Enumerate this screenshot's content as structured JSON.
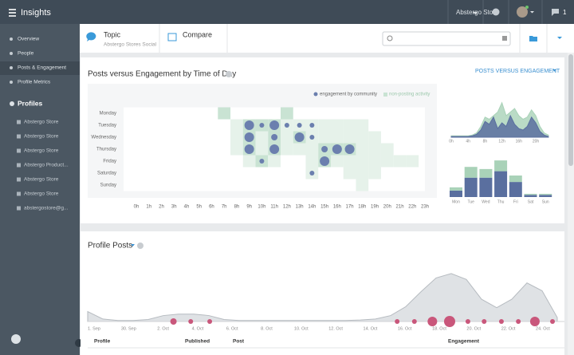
{
  "topbar": {
    "title": "Insights",
    "store": "Abstergo Store",
    "notifications": "1"
  },
  "sidebar": {
    "nav": [
      "Overview",
      "People",
      "Posts & Engagement",
      "Profile Metrics"
    ],
    "profiles_title": "Profiles",
    "profiles": [
      "Abstergo Store",
      "Abstergo Store",
      "Abstergo Store",
      "Abstergo Product...",
      "Abstergo Store",
      "Abstergo Store",
      "abstergostore@g..."
    ]
  },
  "toolbar": {
    "topic": "Topic",
    "topic_sub": "Abstergo Stores Social",
    "compare": "Compare"
  },
  "engagement_card": {
    "title": "Posts versus Engagement by Time of Day",
    "view": "POSTS VERSUS ENGAGEMENT",
    "legend": [
      "engagement by community",
      "non-posting activity"
    ],
    "days": [
      "Monday",
      "Tuesday",
      "Wednesday",
      "Thursday",
      "Friday",
      "Saturday",
      "Sunday"
    ],
    "hours": [
      "0h",
      "1h",
      "2h",
      "3h",
      "4h",
      "5h",
      "6h",
      "7h",
      "8h",
      "9h",
      "10h",
      "11h",
      "12h",
      "13h",
      "14h",
      "15h",
      "16h",
      "17h",
      "18h",
      "19h",
      "20h",
      "21h",
      "22h",
      "23h"
    ],
    "activity": [
      [
        0,
        7,
        2
      ],
      [
        0,
        12,
        2
      ],
      [
        1,
        8,
        1
      ],
      [
        1,
        9,
        2
      ],
      [
        1,
        10,
        2
      ],
      [
        1,
        11,
        2
      ],
      [
        1,
        12,
        1
      ],
      [
        1,
        13,
        1
      ],
      [
        1,
        14,
        1
      ],
      [
        1,
        15,
        1
      ],
      [
        1,
        16,
        1
      ],
      [
        1,
        17,
        1
      ],
      [
        1,
        18,
        1
      ],
      [
        2,
        8,
        1
      ],
      [
        2,
        9,
        2
      ],
      [
        2,
        10,
        1
      ],
      [
        2,
        11,
        2
      ],
      [
        2,
        12,
        1
      ],
      [
        2,
        13,
        2
      ],
      [
        2,
        14,
        1
      ],
      [
        2,
        15,
        1
      ],
      [
        2,
        16,
        1
      ],
      [
        2,
        17,
        1
      ],
      [
        2,
        18,
        1
      ],
      [
        2,
        19,
        1
      ],
      [
        3,
        8,
        1
      ],
      [
        3,
        9,
        2
      ],
      [
        3,
        10,
        1
      ],
      [
        3,
        11,
        2
      ],
      [
        3,
        12,
        1
      ],
      [
        3,
        13,
        1
      ],
      [
        3,
        14,
        1
      ],
      [
        3,
        15,
        2
      ],
      [
        3,
        16,
        2
      ],
      [
        3,
        17,
        2
      ],
      [
        3,
        18,
        1
      ],
      [
        3,
        19,
        1
      ],
      [
        3,
        20,
        1
      ],
      [
        4,
        9,
        1
      ],
      [
        4,
        10,
        2
      ],
      [
        4,
        11,
        1
      ],
      [
        4,
        14,
        1
      ],
      [
        4,
        15,
        2
      ],
      [
        4,
        16,
        1
      ],
      [
        4,
        17,
        1
      ],
      [
        4,
        18,
        1
      ],
      [
        4,
        19,
        1
      ],
      [
        4,
        20,
        1
      ],
      [
        4,
        21,
        1
      ],
      [
        4,
        22,
        1
      ],
      [
        5,
        14,
        1
      ],
      [
        5,
        17,
        1
      ],
      [
        5,
        18,
        1
      ],
      [
        5,
        19,
        1
      ],
      [
        6,
        18,
        1
      ]
    ],
    "bubbles": [
      [
        1,
        9,
        6
      ],
      [
        1,
        10,
        3
      ],
      [
        1,
        11,
        6
      ],
      [
        1,
        12,
        3
      ],
      [
        1,
        13,
        3
      ],
      [
        1,
        14,
        3
      ],
      [
        2,
        9,
        6
      ],
      [
        2,
        11,
        4
      ],
      [
        2,
        13,
        6
      ],
      [
        2,
        14,
        3
      ],
      [
        3,
        9,
        6
      ],
      [
        3,
        11,
        6
      ],
      [
        3,
        15,
        4
      ],
      [
        3,
        16,
        6
      ],
      [
        3,
        17,
        6
      ],
      [
        4,
        10,
        3
      ],
      [
        4,
        15,
        6
      ],
      [
        5,
        14,
        3
      ]
    ],
    "hourly": {
      "labels": [
        "0h",
        "4h",
        "8h",
        "12h",
        "16h",
        "20h"
      ],
      "activity": [
        2,
        2,
        2,
        2,
        2,
        3,
        6,
        15,
        28,
        25,
        30,
        35,
        48,
        30,
        35,
        40,
        30,
        25,
        28,
        38,
        30,
        15,
        6,
        3
      ],
      "engagement": [
        1,
        1,
        1,
        1,
        1,
        2,
        4,
        10,
        22,
        18,
        28,
        12,
        20,
        15,
        30,
        18,
        12,
        10,
        15,
        28,
        20,
        8,
        3,
        1
      ]
    },
    "weekly": {
      "days": [
        "Mon",
        "Tue",
        "Wed",
        "Thu",
        "Fri",
        "Sat",
        "Sun"
      ],
      "engagement": [
        3,
        9,
        9,
        12,
        7,
        1,
        1
      ],
      "activity": [
        1.5,
        5,
        4,
        5,
        3,
        0.5,
        0.5
      ]
    }
  },
  "posts_card": {
    "title": "Profile Posts",
    "dates": [
      "1. Sep",
      "30. Sep",
      "2. Oct",
      "4. Oct",
      "6. Oct",
      "8. Oct",
      "10. Oct",
      "12. Oct",
      "14. Oct",
      "16. Oct",
      "18. Oct",
      "20. Oct",
      "22. Oct",
      "24. Oct"
    ],
    "volume": [
      20,
      5,
      2,
      2,
      4,
      12,
      15,
      15,
      12,
      4,
      2,
      2,
      2,
      2,
      2,
      2,
      2,
      2,
      3,
      5,
      12,
      30,
      60,
      88,
      97,
      85,
      45,
      28,
      45,
      78,
      62,
      8
    ],
    "posts": [
      [
        2.3,
        4
      ],
      [
        2.8,
        3
      ],
      [
        3.35,
        3
      ],
      [
        8.78,
        3
      ],
      [
        9.28,
        3
      ],
      [
        9.8,
        6
      ],
      [
        10.3,
        7
      ],
      [
        10.83,
        3
      ],
      [
        11.3,
        3
      ],
      [
        11.8,
        3
      ],
      [
        12.29,
        3
      ],
      [
        12.77,
        6
      ],
      [
        13.28,
        3
      ]
    ],
    "columns": [
      "Profile",
      "Published",
      "Post",
      "Engagement"
    ]
  }
}
